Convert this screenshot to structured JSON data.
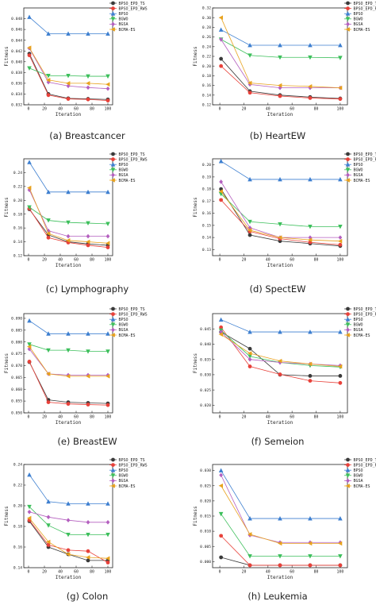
{
  "legend_labels": [
    "BPSO_EPD_TS",
    "BPSO_EPD_RWS",
    "BPSO",
    "BGWO",
    "BGSA",
    "BCMA-ES"
  ],
  "series_colors": [
    "#3a3a3a",
    "#e8413a",
    "#3d7fd0",
    "#3cbf5b",
    "#b45fbf",
    "#e8a21e"
  ],
  "series_markers": [
    "circle",
    "circle",
    "triangle-up",
    "triangle-down",
    "diamond",
    "triangle-left"
  ],
  "xlabel": "Iteration",
  "ylabel": "Fitness",
  "chart_data": [
    {
      "type": "line",
      "caption": "(a) Breastcancer",
      "x": [
        1,
        25,
        50,
        75,
        100
      ],
      "xticks": [
        0,
        20,
        40,
        60,
        80,
        100
      ],
      "ylim": [
        0.032,
        0.05
      ],
      "yticks": [
        0.032,
        0.034,
        0.036,
        0.038,
        0.04,
        0.042,
        0.044,
        0.046,
        0.048
      ],
      "ytick_labels": [
        "0.032",
        "0.034",
        "0.036",
        "0.038",
        "0.040",
        "0.042",
        "0.044",
        "0.046",
        "0.048"
      ],
      "series": [
        {
          "name": "BPSO_EPD_TS",
          "values": [
            0.0415,
            0.034,
            0.0332,
            0.0331,
            0.033
          ]
        },
        {
          "name": "BPSO_EPD_RWS",
          "values": [
            0.0412,
            0.0338,
            0.0331,
            0.033,
            0.0328
          ]
        },
        {
          "name": "BPSO",
          "values": [
            0.0483,
            0.0452,
            0.0452,
            0.0452,
            0.0452
          ]
        },
        {
          "name": "BGWO",
          "values": [
            0.0388,
            0.0374,
            0.0374,
            0.0373,
            0.0373
          ]
        },
        {
          "name": "BGSA",
          "values": [
            0.0425,
            0.0362,
            0.0355,
            0.0352,
            0.035
          ]
        },
        {
          "name": "BCMA-ES",
          "values": [
            0.0426,
            0.0366,
            0.036,
            0.036,
            0.0358
          ]
        }
      ]
    },
    {
      "type": "line",
      "caption": "(b) HeartEW",
      "x": [
        1,
        25,
        50,
        75,
        100
      ],
      "xticks": [
        0,
        20,
        40,
        60,
        80,
        100
      ],
      "ylim": [
        0.12,
        0.32
      ],
      "yticks": [
        0.12,
        0.14,
        0.16,
        0.18,
        0.2,
        0.22,
        0.24,
        0.26,
        0.28,
        0.3,
        0.32
      ],
      "ytick_labels": [
        "0.12",
        "0.14",
        "0.16",
        "0.18",
        "0.20",
        "0.22",
        "0.24",
        "0.26",
        "0.28",
        "0.30",
        "0.32"
      ],
      "series": [
        {
          "name": "BPSO_EPD_TS",
          "values": [
            0.215,
            0.148,
            0.14,
            0.136,
            0.133
          ]
        },
        {
          "name": "BPSO_EPD_RWS",
          "values": [
            0.2,
            0.145,
            0.138,
            0.134,
            0.132
          ]
        },
        {
          "name": "BPSO",
          "values": [
            0.275,
            0.243,
            0.243,
            0.243,
            0.243
          ]
        },
        {
          "name": "BGWO",
          "values": [
            0.255,
            0.222,
            0.218,
            0.218,
            0.217
          ]
        },
        {
          "name": "BGSA",
          "values": [
            0.255,
            0.162,
            0.155,
            0.155,
            0.155
          ]
        },
        {
          "name": "BCMA-ES",
          "values": [
            0.3,
            0.165,
            0.16,
            0.158,
            0.155
          ]
        }
      ]
    },
    {
      "type": "line",
      "caption": "(c) Lymphography",
      "x": [
        1,
        25,
        50,
        75,
        100
      ],
      "xticks": [
        0,
        20,
        40,
        60,
        80,
        100
      ],
      "ylim": [
        0.12,
        0.26
      ],
      "yticks": [
        0.12,
        0.14,
        0.16,
        0.18,
        0.2,
        0.22,
        0.24
      ],
      "ytick_labels": [
        "0.12",
        "0.14",
        "0.16",
        "0.18",
        "0.20",
        "0.22",
        "0.24"
      ],
      "series": [
        {
          "name": "BPSO_EPD_TS",
          "values": [
            0.187,
            0.15,
            0.14,
            0.137,
            0.135
          ]
        },
        {
          "name": "BPSO_EPD_RWS",
          "values": [
            0.188,
            0.146,
            0.139,
            0.135,
            0.132
          ]
        },
        {
          "name": "BPSO",
          "values": [
            0.255,
            0.212,
            0.212,
            0.212,
            0.212
          ]
        },
        {
          "name": "BGWO",
          "values": [
            0.19,
            0.171,
            0.168,
            0.167,
            0.166
          ]
        },
        {
          "name": "BGSA",
          "values": [
            0.215,
            0.156,
            0.148,
            0.148,
            0.148
          ]
        },
        {
          "name": "BCMA-ES",
          "values": [
            0.218,
            0.152,
            0.142,
            0.14,
            0.138
          ]
        }
      ]
    },
    {
      "type": "line",
      "caption": "(d) SpectEW",
      "x": [
        1,
        25,
        50,
        75,
        100
      ],
      "xticks": [
        0,
        20,
        40,
        60,
        80,
        100
      ],
      "ylim": [
        0.125,
        0.205
      ],
      "yticks": [
        0.13,
        0.14,
        0.15,
        0.16,
        0.17,
        0.18,
        0.19,
        0.2
      ],
      "ytick_labels": [
        "0.13",
        "0.14",
        "0.15",
        "0.16",
        "0.17",
        "0.18",
        "0.19",
        "0.20"
      ],
      "series": [
        {
          "name": "BPSO_EPD_TS",
          "values": [
            0.18,
            0.142,
            0.137,
            0.135,
            0.133
          ]
        },
        {
          "name": "BPSO_EPD_RWS",
          "values": [
            0.171,
            0.145,
            0.139,
            0.136,
            0.134
          ]
        },
        {
          "name": "BPSO",
          "values": [
            0.203,
            0.188,
            0.188,
            0.188,
            0.188
          ]
        },
        {
          "name": "BGWO",
          "values": [
            0.176,
            0.153,
            0.151,
            0.149,
            0.149
          ]
        },
        {
          "name": "BGSA",
          "values": [
            0.186,
            0.148,
            0.14,
            0.14,
            0.14
          ]
        },
        {
          "name": "BCMA-ES",
          "values": [
            0.178,
            0.146,
            0.14,
            0.138,
            0.137
          ]
        }
      ]
    },
    {
      "type": "line",
      "caption": "(e) BreastEW",
      "x": [
        1,
        25,
        50,
        75,
        100
      ],
      "xticks": [
        0,
        20,
        40,
        60,
        80,
        100
      ],
      "ylim": [
        0.05,
        0.092
      ],
      "yticks": [
        0.05,
        0.055,
        0.06,
        0.065,
        0.07,
        0.075,
        0.08,
        0.085,
        0.09
      ],
      "ytick_labels": [
        "0.050",
        "0.055",
        "0.060",
        "0.065",
        "0.070",
        "0.075",
        "0.080",
        "0.085",
        "0.090"
      ],
      "series": [
        {
          "name": "BPSO_EPD_TS",
          "values": [
            0.0715,
            0.0555,
            0.0545,
            0.0542,
            0.054
          ]
        },
        {
          "name": "BPSO_EPD_RWS",
          "values": [
            0.0717,
            0.0545,
            0.0538,
            0.0535,
            0.0533
          ]
        },
        {
          "name": "BPSO",
          "values": [
            0.089,
            0.0835,
            0.0835,
            0.0835,
            0.0835
          ]
        },
        {
          "name": "BGWO",
          "values": [
            0.079,
            0.0765,
            0.0765,
            0.076,
            0.076
          ]
        },
        {
          "name": "BGSA",
          "values": [
            0.077,
            0.0665,
            0.066,
            0.066,
            0.066
          ]
        },
        {
          "name": "BCMA-ES",
          "values": [
            0.078,
            0.0665,
            0.0655,
            0.0655,
            0.0655
          ]
        }
      ]
    },
    {
      "type": "line",
      "caption": "(f) Semeion",
      "x": [
        1,
        25,
        50,
        75,
        100
      ],
      "xticks": [
        0,
        20,
        40,
        60,
        80,
        100
      ],
      "ylim": [
        0.0175,
        0.05
      ],
      "yticks": [
        0.02,
        0.025,
        0.03,
        0.035,
        0.04,
        0.045
      ],
      "ytick_labels": [
        "0.020",
        "0.025",
        "0.030",
        "0.035",
        "0.040",
        "0.045"
      ],
      "series": [
        {
          "name": "BPSO_EPD_TS",
          "values": [
            0.044,
            0.0385,
            0.03,
            0.0296,
            0.0296
          ]
        },
        {
          "name": "BPSO_EPD_RWS",
          "values": [
            0.0455,
            0.0327,
            0.0301,
            0.028,
            0.0273
          ]
        },
        {
          "name": "BPSO",
          "values": [
            0.048,
            0.044,
            0.044,
            0.044,
            0.044
          ]
        },
        {
          "name": "BGWO",
          "values": [
            0.0445,
            0.036,
            0.034,
            0.033,
            0.0325
          ]
        },
        {
          "name": "BGSA",
          "values": [
            0.044,
            0.035,
            0.034,
            0.0335,
            0.033
          ]
        },
        {
          "name": "BCMA-ES",
          "values": [
            0.0432,
            0.037,
            0.0345,
            0.0335,
            0.0327
          ]
        }
      ]
    },
    {
      "type": "line",
      "caption": "(g) Colon",
      "x": [
        1,
        25,
        50,
        75,
        100
      ],
      "xticks": [
        0,
        20,
        40,
        60,
        80,
        100
      ],
      "ylim": [
        0.14,
        0.24
      ],
      "yticks": [
        0.14,
        0.16,
        0.18,
        0.2,
        0.22,
        0.24
      ],
      "ytick_labels": [
        "0.14",
        "0.16",
        "0.18",
        "0.20",
        "0.22",
        "0.24"
      ],
      "series": [
        {
          "name": "BPSO_EPD_TS",
          "values": [
            0.185,
            0.16,
            0.153,
            0.147,
            0.147
          ]
        },
        {
          "name": "BPSO_EPD_RWS",
          "values": [
            0.186,
            0.162,
            0.157,
            0.156,
            0.145
          ]
        },
        {
          "name": "BPSO",
          "values": [
            0.23,
            0.204,
            0.202,
            0.202,
            0.202
          ]
        },
        {
          "name": "BGWO",
          "values": [
            0.199,
            0.181,
            0.172,
            0.172,
            0.172
          ]
        },
        {
          "name": "BGSA",
          "values": [
            0.194,
            0.189,
            0.186,
            0.184,
            0.184
          ]
        },
        {
          "name": "BCMA-ES",
          "values": [
            0.188,
            0.165,
            0.153,
            0.15,
            0.149
          ]
        }
      ]
    },
    {
      "type": "line",
      "caption": "(h) Leukemia",
      "x": [
        1,
        25,
        50,
        75,
        100
      ],
      "xticks": [
        0,
        20,
        40,
        60,
        80,
        100
      ],
      "ylim": [
        -0.002,
        0.032
      ],
      "yticks": [
        0.0,
        0.005,
        0.01,
        0.015,
        0.02,
        0.025,
        0.03
      ],
      "ytick_labels": [
        "0.000",
        "0.005",
        "0.010",
        "0.015",
        "0.020",
        "0.025",
        "0.030"
      ],
      "series": [
        {
          "name": "BPSO_EPD_TS",
          "values": [
            0.0014,
            -0.0012,
            -0.0012,
            -0.0012,
            -0.0012
          ]
        },
        {
          "name": "BPSO_EPD_RWS",
          "values": [
            0.0085,
            -0.0012,
            -0.0012,
            -0.0012,
            -0.0012
          ]
        },
        {
          "name": "BPSO",
          "values": [
            0.03,
            0.0142,
            0.0142,
            0.0142,
            0.0142
          ]
        },
        {
          "name": "BGWO",
          "values": [
            0.0157,
            0.0018,
            0.0018,
            0.0018,
            0.0018
          ]
        },
        {
          "name": "BGSA",
          "values": [
            0.0285,
            0.0087,
            0.0063,
            0.0063,
            0.0063
          ]
        },
        {
          "name": "BCMA-ES",
          "values": [
            0.025,
            0.009,
            0.006,
            0.006,
            0.006
          ]
        }
      ]
    }
  ]
}
